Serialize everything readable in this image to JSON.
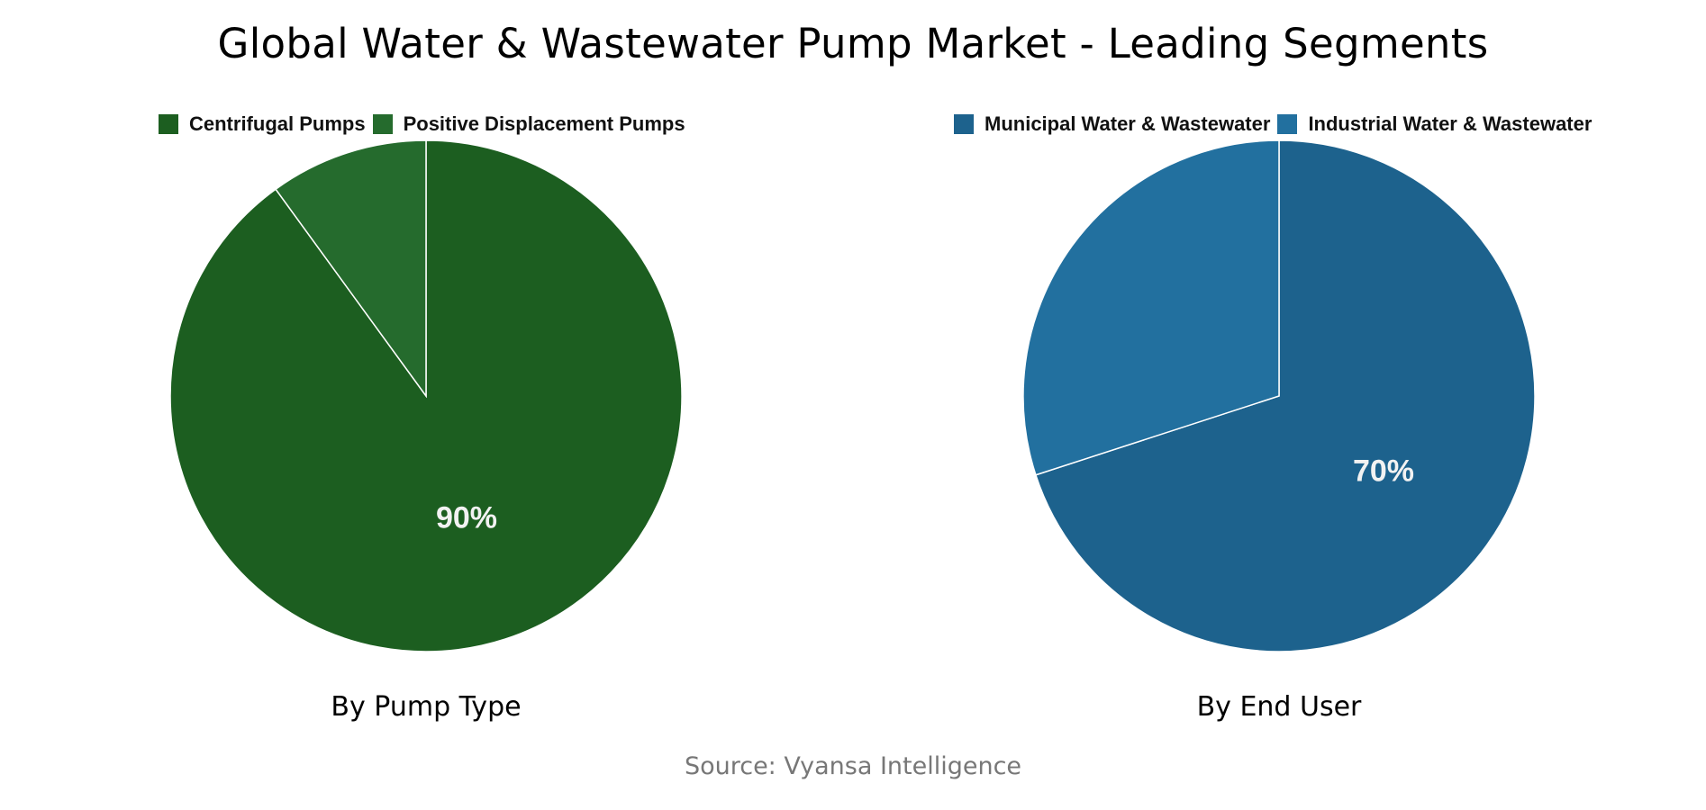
{
  "title": "Global Water & Wastewater Pump Market - Leading Segments",
  "source": "Source: Vyansa Intelligence",
  "charts": [
    {
      "subtitle": "By Pump Type",
      "legend": [
        {
          "label": "Centrifugal Pumps",
          "color": "#1c5e20"
        },
        {
          "label": "Positive Displacement Pumps",
          "color": "#256b2d"
        }
      ],
      "label": "90%"
    },
    {
      "subtitle": "By End User",
      "legend": [
        {
          "label": "Municipal Water & Wastewater",
          "color": "#1d628d"
        },
        {
          "label": "Industrial Water & Wastewater",
          "color": "#22709f"
        }
      ],
      "label": "70%"
    }
  ],
  "chart_data": [
    {
      "type": "pie",
      "title": "By Pump Type",
      "categories": [
        "Centrifugal Pumps",
        "Positive Displacement Pumps"
      ],
      "values": [
        90,
        10
      ],
      "colors": [
        "#1c5e20",
        "#256b2d"
      ],
      "data_labels": [
        "90%",
        ""
      ],
      "legend_position": "top"
    },
    {
      "type": "pie",
      "title": "By End User",
      "categories": [
        "Municipal Water & Wastewater",
        "Industrial Water & Wastewater"
      ],
      "values": [
        70,
        30
      ],
      "colors": [
        "#1d628d",
        "#22709f"
      ],
      "data_labels": [
        "70%",
        ""
      ],
      "legend_position": "top"
    }
  ]
}
